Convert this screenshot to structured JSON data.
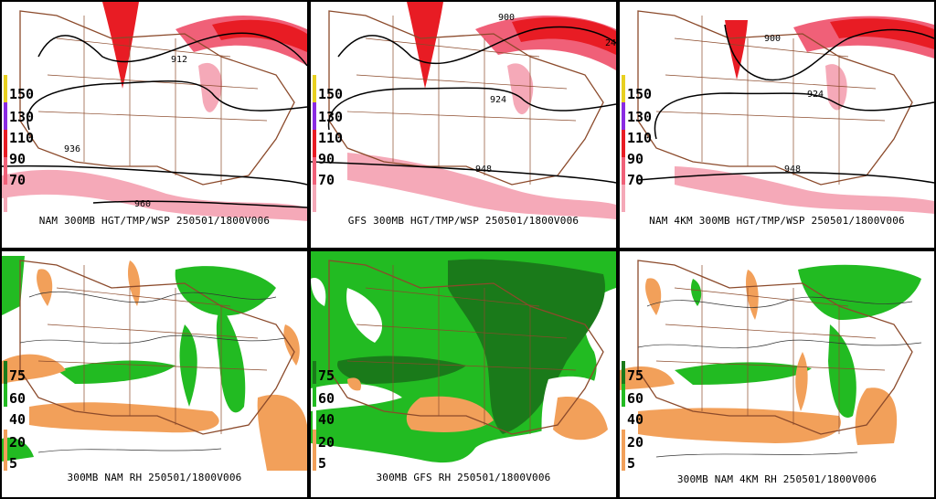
{
  "panels": [
    {
      "id": "nam-300mb-wind",
      "kind": "wind",
      "caption": "NAM 300MB HGT/TMP/WSP 250501/1800V006",
      "scale": [
        "150",
        "130",
        "110",
        "90",
        "70"
      ],
      "contour_labels": [
        "912",
        "936",
        "960"
      ]
    },
    {
      "id": "gfs-300mb-wind",
      "kind": "wind",
      "caption": "GFS 300MB HGT/TMP/WSP 250501/1800V006",
      "scale": [
        "150",
        "130",
        "110",
        "90",
        "70"
      ],
      "contour_labels": [
        "900",
        "924",
        "24",
        "948"
      ]
    },
    {
      "id": "nam4km-300mb-wind",
      "kind": "wind",
      "caption": "NAM 4KM 300MB HGT/TMP/WSP 250501/1800V006",
      "scale": [
        "150",
        "130",
        "110",
        "90",
        "70"
      ],
      "contour_labels": [
        "900",
        "924",
        "948"
      ]
    },
    {
      "id": "nam-300mb-rh",
      "kind": "rh",
      "caption": "300MB NAM RH 250501/1800V006",
      "scale": [
        "75",
        "60",
        "40",
        "20",
        "5"
      ],
      "contour_labels": []
    },
    {
      "id": "gfs-300mb-rh",
      "kind": "rh",
      "caption": "300MB GFS RH 250501/1800V006",
      "scale": [
        "75",
        "60",
        "40",
        "20",
        "5"
      ],
      "contour_labels": []
    },
    {
      "id": "nam4km-300mb-rh",
      "kind": "rh",
      "caption": "300MB NAM 4KM RH 250501/1800V006",
      "scale": [
        "75",
        "60",
        "40",
        "20",
        "5"
      ],
      "contour_labels": []
    }
  ],
  "colors": {
    "wind_light": "#f5a9b8",
    "wind_mid": "#f06078",
    "wind_strong": "#e81c24",
    "rh_moist": "#22bb22",
    "rh_very_moist": "#1a7a1a",
    "rh_dry": "#f2a05a",
    "map_lines": "#8b4a2b",
    "contour": "#000000"
  }
}
